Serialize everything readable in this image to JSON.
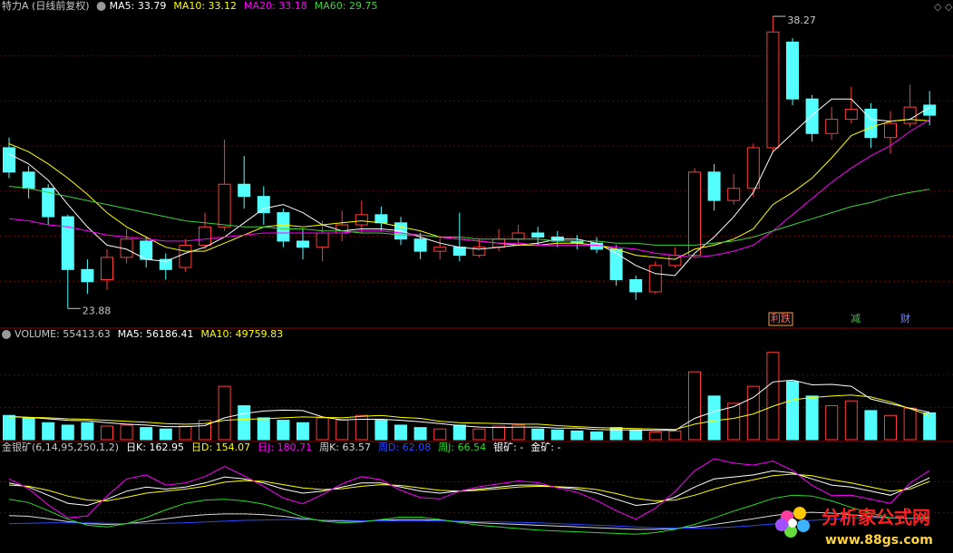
{
  "chart_data": [
    {
      "type": "candlestick",
      "title": "特力A (日线前复权)",
      "open": [
        31.8,
        30.6,
        29.8,
        28.4,
        25.8,
        25.3,
        26.4,
        27.2,
        26.3,
        25.9,
        27.0,
        27.9,
        30.0,
        29.4,
        28.6,
        27.2,
        26.9,
        27.6,
        28.0,
        28.5,
        28.1,
        27.3,
        26.7,
        26.9,
        26.5,
        26.9,
        27.3,
        27.6,
        27.4,
        27.2,
        27.1,
        26.8,
        25.3,
        24.7,
        26.0,
        26.5,
        30.6,
        29.2,
        29.8,
        31.8,
        37.0,
        34.2,
        32.5,
        33.2,
        33.7,
        32.3,
        33.0,
        33.9
      ],
      "high": [
        32.3,
        30.9,
        30.0,
        28.5,
        26.3,
        26.8,
        27.8,
        27.4,
        26.6,
        27.3,
        28.6,
        32.2,
        31.4,
        29.9,
        28.8,
        27.8,
        28.2,
        28.7,
        29.2,
        28.9,
        28.4,
        27.6,
        27.4,
        28.6,
        27.3,
        27.8,
        28.0,
        27.9,
        27.7,
        27.5,
        27.4,
        27.0,
        25.5,
        26.2,
        26.9,
        30.8,
        31.0,
        30.5,
        32.0,
        38.27,
        37.2,
        34.4,
        33.8,
        34.8,
        34.0,
        33.6,
        34.9,
        34.6
      ],
      "low": [
        30.3,
        29.3,
        28.0,
        23.88,
        24.6,
        24.8,
        26.1,
        25.9,
        25.3,
        25.7,
        26.8,
        27.7,
        28.8,
        28.0,
        26.9,
        26.3,
        26.2,
        27.2,
        27.6,
        27.7,
        27.0,
        26.3,
        26.3,
        26.2,
        26.4,
        26.7,
        27.0,
        27.0,
        26.9,
        26.8,
        26.6,
        25.0,
        24.3,
        24.6,
        25.9,
        26.4,
        28.7,
        29.0,
        29.4,
        31.6,
        33.9,
        32.1,
        32.2,
        33.0,
        31.8,
        31.5,
        32.8,
        32.9
      ],
      "close": [
        30.6,
        29.8,
        28.4,
        25.8,
        25.2,
        26.4,
        27.3,
        26.3,
        25.8,
        27.0,
        27.9,
        30.0,
        29.4,
        28.6,
        27.2,
        26.9,
        27.6,
        28.0,
        28.5,
        28.1,
        27.3,
        26.7,
        26.9,
        26.5,
        26.9,
        27.3,
        27.6,
        27.4,
        27.2,
        27.1,
        26.8,
        25.3,
        24.7,
        26.0,
        26.5,
        30.6,
        29.2,
        29.8,
        31.8,
        37.5,
        34.2,
        32.5,
        33.2,
        33.7,
        32.3,
        33.0,
        33.8,
        33.4
      ],
      "up_color": "#ff3c3c",
      "down_color": "#54ffff",
      "series": [
        {
          "name": "MA5: 33.79",
          "color": "#ffffff",
          "values": [
            31.5,
            31.0,
            30.2,
            29.0,
            27.9,
            27.0,
            26.8,
            26.3,
            26.2,
            26.6,
            26.9,
            27.4,
            28.1,
            28.8,
            29.0,
            28.6,
            28.0,
            27.7,
            27.8,
            27.8,
            27.7,
            27.4,
            27.1,
            26.9,
            26.8,
            26.9,
            27.0,
            27.1,
            27.3,
            27.3,
            27.1,
            26.6,
            26.0,
            25.6,
            25.5,
            26.6,
            27.4,
            28.4,
            29.6,
            31.6,
            32.5,
            33.4,
            34.2,
            34.2,
            33.2,
            33.1,
            33.2,
            33.79
          ]
        },
        {
          "name": "MA10: 33.12",
          "color": "#ffff00",
          "values": [
            32.0,
            31.6,
            31.0,
            30.3,
            29.5,
            28.6,
            27.9,
            27.4,
            26.9,
            26.7,
            26.7,
            27.1,
            27.5,
            27.9,
            28.0,
            27.9,
            28.0,
            28.1,
            28.2,
            28.1,
            27.9,
            27.7,
            27.4,
            27.3,
            27.2,
            27.1,
            27.0,
            27.0,
            27.1,
            27.1,
            27.0,
            26.8,
            26.5,
            26.4,
            26.3,
            26.8,
            27.0,
            27.3,
            27.8,
            29.0,
            29.6,
            30.3,
            31.3,
            32.4,
            32.8,
            33.1,
            33.2,
            33.12
          ]
        },
        {
          "name": "MA20: 33.18",
          "color": "#ff00ff",
          "values": [
            28.3,
            28.2,
            28.0,
            27.9,
            27.7,
            27.5,
            27.4,
            27.3,
            27.2,
            27.2,
            27.3,
            27.4,
            27.5,
            27.6,
            27.6,
            27.6,
            27.6,
            27.6,
            27.7,
            27.7,
            27.6,
            27.5,
            27.4,
            27.3,
            27.2,
            27.1,
            27.1,
            27.0,
            27.0,
            27.0,
            27.0,
            26.9,
            26.8,
            26.6,
            26.5,
            26.4,
            26.5,
            26.7,
            27.0,
            27.7,
            28.5,
            29.3,
            30.1,
            30.8,
            31.4,
            31.9,
            32.6,
            33.18
          ]
        },
        {
          "name": "MA60: 29.75",
          "color": "#3cd23c",
          "values": [
            29.9,
            29.8,
            29.6,
            29.4,
            29.2,
            29.0,
            28.8,
            28.6,
            28.4,
            28.2,
            28.1,
            28.0,
            27.9,
            27.9,
            27.8,
            27.8,
            27.7,
            27.7,
            27.6,
            27.6,
            27.5,
            27.5,
            27.4,
            27.4,
            27.3,
            27.3,
            27.3,
            27.3,
            27.2,
            27.2,
            27.2,
            27.1,
            27.1,
            27.0,
            27.0,
            27.0,
            27.1,
            27.2,
            27.4,
            27.7,
            28.0,
            28.3,
            28.6,
            28.9,
            29.1,
            29.4,
            29.6,
            29.75
          ]
        }
      ],
      "max_label": 38.27,
      "min_label": 23.88,
      "events": [
        {
          "text": "利跌",
          "color": "#ff6a6a"
        },
        {
          "text": "减",
          "color": "#3cc83c"
        },
        {
          "text": "财",
          "color": "#6e8cff"
        }
      ],
      "ylim": [
        23,
        38.54
      ],
      "grid": true
    },
    {
      "type": "bar",
      "name": "VOLUME: 55413.63",
      "values": [
        50000,
        45000,
        35000,
        30000,
        35000,
        28000,
        30000,
        25000,
        22000,
        28000,
        40000,
        110000,
        70000,
        45000,
        40000,
        35000,
        45000,
        40000,
        50000,
        40000,
        30000,
        25000,
        22000,
        30000,
        22000,
        28000,
        30000,
        22000,
        20000,
        18000,
        16000,
        25000,
        20000,
        16000,
        18000,
        140000,
        90000,
        75000,
        110000,
        180000,
        120000,
        90000,
        70000,
        80000,
        60000,
        50000,
        65000,
        55413.63
      ],
      "series": [
        {
          "name": "MA5: 56186.41",
          "color": "#ffffff",
          "values": [
            48000,
            46000,
            43000,
            40000,
            39000,
            35000,
            32000,
            30000,
            27000,
            27000,
            29000,
            45000,
            54000,
            59000,
            61000,
            60000,
            47000,
            41000,
            42000,
            42000,
            40000,
            37000,
            33000,
            29000,
            26000,
            25000,
            26000,
            26000,
            24000,
            24000,
            21000,
            20000,
            20000,
            19000,
            19000,
            44000,
            58000,
            68000,
            87000,
            119000,
            123000,
            113000,
            114000,
            110000,
            84000,
            74000,
            65000,
            56186.41
          ]
        },
        {
          "name": "MA10: 49759.83",
          "color": "#ffff00",
          "values": [
            47000,
            46000,
            45000,
            43000,
            42000,
            40000,
            38000,
            36000,
            33000,
            32000,
            33000,
            40000,
            42000,
            43000,
            45000,
            47000,
            46000,
            45000,
            48000,
            50000,
            46000,
            44000,
            38000,
            35000,
            34000,
            33000,
            32000,
            32000,
            29000,
            27000,
            25000,
            24000,
            23000,
            22000,
            21000,
            32000,
            39000,
            44000,
            53000,
            69000,
            82000,
            87000,
            90000,
            92000,
            88000,
            78000,
            64000,
            49759.83
          ]
        }
      ],
      "ylim": [
        0,
        200000
      ],
      "grid": true
    },
    {
      "type": "line",
      "title": "金银矿(6,14,95,250,1,2)",
      "series": [
        {
          "name": "日K: 162.95",
          "color": "#ffffff",
          "values": [
            150,
            140,
            120,
            100,
            95,
            110,
            130,
            140,
            135,
            140,
            150,
            165,
            160,
            150,
            135,
            125,
            130,
            140,
            150,
            150,
            140,
            130,
            125,
            130,
            135,
            140,
            145,
            145,
            140,
            135,
            125,
            110,
            95,
            100,
            115,
            140,
            160,
            165,
            170,
            180,
            175,
            160,
            145,
            140,
            130,
            120,
            140,
            162.95
          ]
        },
        {
          "name": "日D: 154.07",
          "color": "#ffff00",
          "values": [
            145,
            142,
            132,
            118,
            108,
            106,
            115,
            125,
            130,
            135,
            142,
            152,
            156,
            154,
            146,
            138,
            134,
            136,
            142,
            146,
            144,
            138,
            132,
            130,
            132,
            136,
            140,
            142,
            141,
            139,
            134,
            124,
            112,
            106,
            108,
            120,
            135,
            148,
            158,
            168,
            172,
            168,
            158,
            150,
            140,
            130,
            135,
            154.07
          ]
        },
        {
          "name": "日J: 180.71",
          "color": "#ff00ff",
          "values": [
            160,
            136,
            96,
            64,
            69,
            118,
            160,
            170,
            145,
            150,
            166,
            191,
            168,
            142,
            113,
            99,
            122,
            148,
            166,
            158,
            132,
            114,
            111,
            130,
            141,
            148,
            155,
            151,
            138,
            127,
            107,
            82,
            61,
            88,
            129,
            180,
            210,
            199,
            194,
            204,
            181,
            144,
            119,
            120,
            110,
            100,
            150,
            180.71
          ]
        },
        {
          "name": "周K: 63.57",
          "color": "#d8d8d8",
          "values": [
            70,
            68,
            62,
            55,
            50,
            48,
            50,
            55,
            62,
            68,
            72,
            74,
            74,
            72,
            68,
            62,
            58,
            56,
            56,
            58,
            60,
            60,
            58,
            55,
            52,
            50,
            48,
            46,
            44,
            42,
            40,
            38,
            36,
            36,
            38,
            42,
            48,
            55,
            62,
            70,
            76,
            78,
            76,
            72,
            68,
            64,
            63,
            63.57
          ]
        },
        {
          "name": "周D: 62.08",
          "color": "#2848ff",
          "values": [
            50,
            51,
            52,
            52,
            52,
            51,
            50,
            50,
            51,
            52,
            54,
            56,
            58,
            59,
            60,
            60,
            59,
            58,
            57,
            57,
            57,
            57,
            57,
            56,
            55,
            54,
            53,
            52,
            50,
            48,
            46,
            44,
            42,
            40,
            39,
            39,
            40,
            42,
            45,
            49,
            54,
            58,
            61,
            63,
            64,
            64,
            63,
            62.08
          ]
        },
        {
          "name": "周J: 66.54",
          "color": "#28dc28",
          "values": [
            110,
            102,
            82,
            61,
            46,
            42,
            50,
            65,
            84,
            100,
            108,
            110,
            106,
            98,
            84,
            66,
            56,
            52,
            54,
            60,
            66,
            66,
            60,
            53,
            46,
            42,
            38,
            34,
            32,
            30,
            28,
            26,
            24,
            28,
            36,
            48,
            64,
            81,
            96,
            112,
            120,
            118,
            106,
            90,
            76,
            64,
            63,
            66.54
          ]
        }
      ],
      "extra_labels": [
        "银矿: -",
        "金矿: -"
      ],
      "ylim": [
        0,
        230
      ],
      "grid": true
    }
  ],
  "watermark": {
    "name": "分析家公式网",
    "url": "www.88gs.com"
  }
}
